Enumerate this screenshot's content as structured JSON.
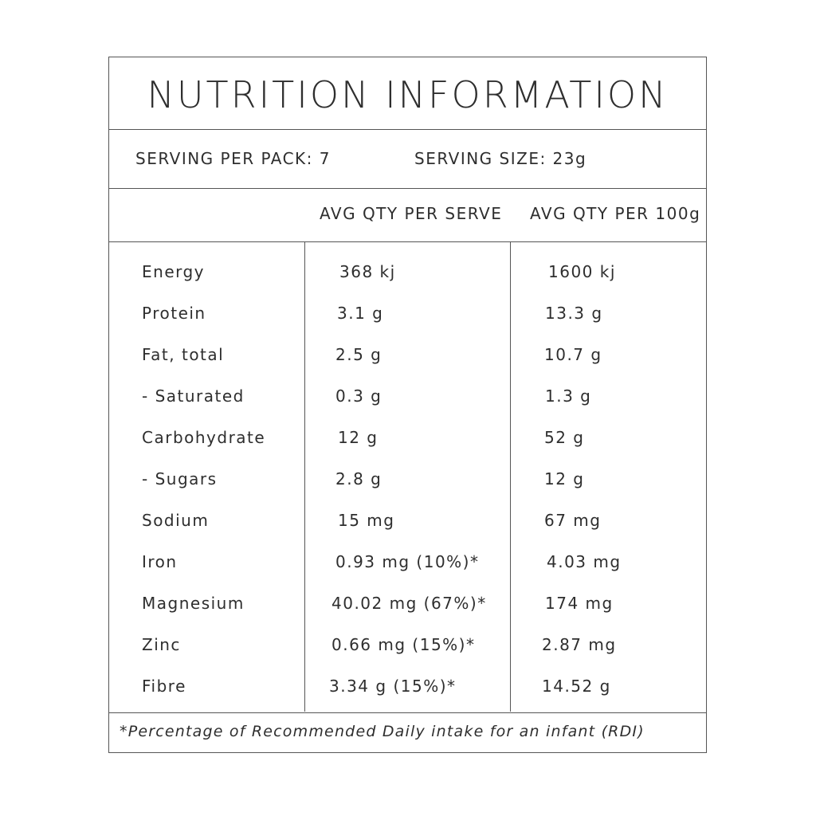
{
  "title": "NUTRITION INFORMATION",
  "serving_per_pack": "SERVING PER PACK: 7",
  "serving_size": "SERVING SIZE: 23g",
  "columns": [
    "AVG QTY PER SERVE",
    "AVG QTY PER 100g"
  ],
  "rows": [
    {
      "name": "Energy",
      "serve": "368 kj",
      "per100": "1600 kj"
    },
    {
      "name": "Protein",
      "serve": "3.1 g",
      "per100": "13.3 g"
    },
    {
      "name": "Fat, total",
      "serve": "2.5 g",
      "per100": "10.7 g"
    },
    {
      "name": "- Saturated",
      "serve": "0.3 g",
      "per100": "1.3 g"
    },
    {
      "name": "Carbohydrate",
      "serve": "12 g",
      "per100": "52 g"
    },
    {
      "name": "- Sugars",
      "serve": "2.8 g",
      "per100": "12 g"
    },
    {
      "name": "Sodium",
      "serve": "15 mg",
      "per100": "67 mg"
    },
    {
      "name": "Iron",
      "serve": "0.93 mg (10%)*",
      "per100": "4.03 mg"
    },
    {
      "name": "Magnesium",
      "serve": "40.02 mg (67%)*",
      "per100": "174 mg"
    },
    {
      "name": "Zinc",
      "serve": "0.66 mg (15%)*",
      "per100": "2.87 mg"
    },
    {
      "name": "Fibre",
      "serve": "3.34 g (15%)*",
      "per100": "14.52 g"
    }
  ],
  "footnote": "*Percentage of Recommended Daily intake for an infant (RDI)"
}
